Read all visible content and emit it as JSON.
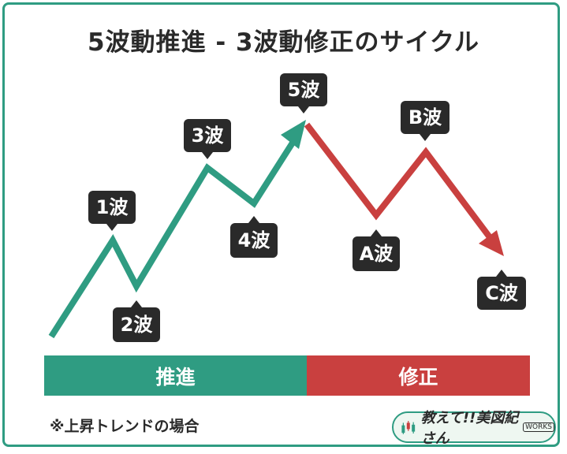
{
  "title": "5波動推進 - 3波動修正のサイクル",
  "waves": {
    "w1": "1波",
    "w2": "2波",
    "w3": "3波",
    "w4": "4波",
    "w5": "5波",
    "wa": "A波",
    "wb": "B波",
    "wc": "C波"
  },
  "phases": {
    "impulse": "推進",
    "correction": "修正"
  },
  "note": "※上昇トレンドの場合",
  "logo": {
    "text": "教えて!!美図紀さん",
    "sub": "WORKS"
  },
  "colors": {
    "impulse": "#2f9c82",
    "correction": "#c9403f",
    "label_bg": "#2a2a2a"
  }
}
